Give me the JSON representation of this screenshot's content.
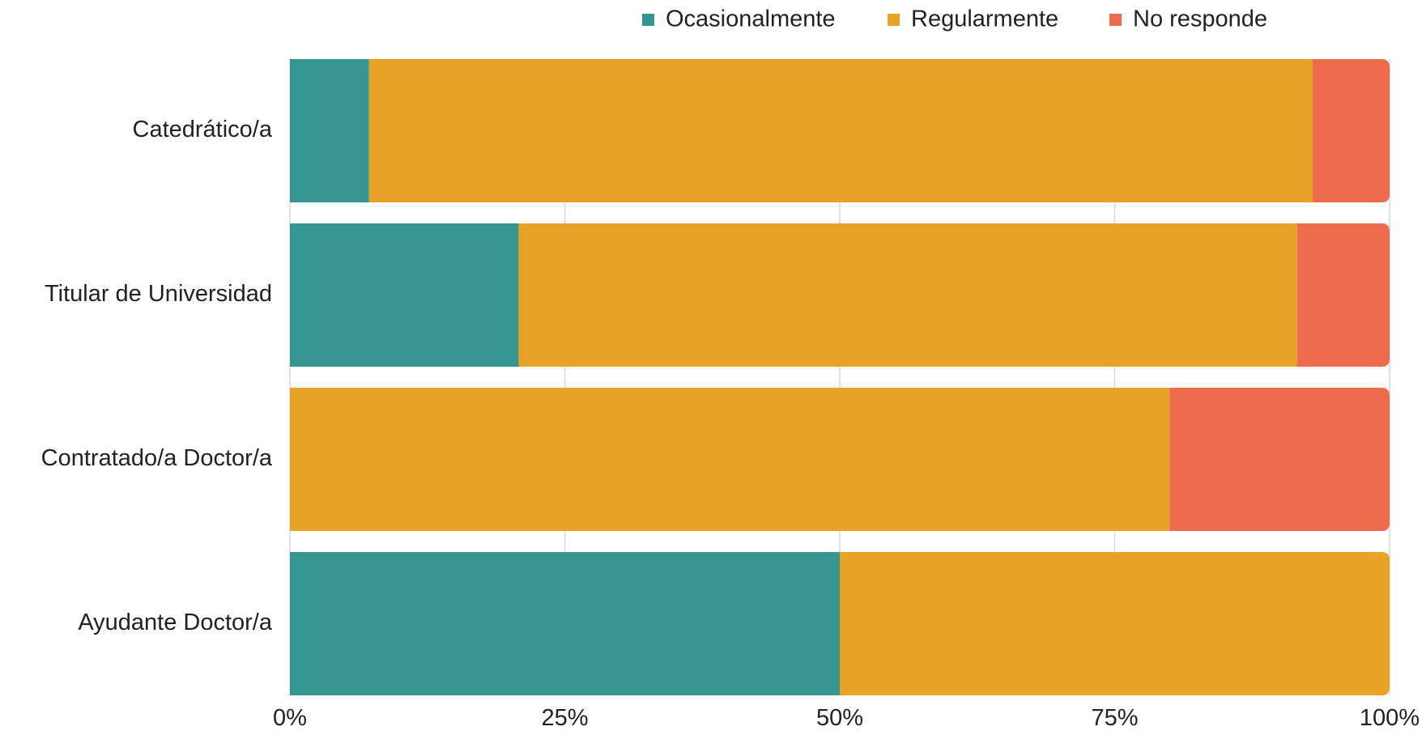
{
  "chart_data": {
    "type": "bar",
    "orientation": "horizontal",
    "stacked": true,
    "normalized": true,
    "categories": [
      "Catedrático/a",
      "Titular de Universidad",
      "Contratado/a Doctor/a",
      "Ayudante Doctor/a"
    ],
    "series": [
      {
        "name": "Ocasionalmente",
        "color": "#34968f",
        "values": [
          7.2,
          20.8,
          0,
          50
        ]
      },
      {
        "name": "Regularmente",
        "color": "#e8a326",
        "values": [
          85.8,
          70.8,
          80,
          50
        ]
      },
      {
        "name": "No responde",
        "color": "#ee6c4e",
        "values": [
          7,
          8.4,
          20,
          0
        ]
      }
    ],
    "xlim": [
      0,
      100
    ],
    "x_ticks": [
      "0%",
      "25%",
      "50%",
      "75%",
      "100%"
    ],
    "x_tick_values": [
      0,
      25,
      50,
      75,
      100
    ],
    "grid": true,
    "legend_position": "top-right",
    "title": "",
    "xlabel": "",
    "ylabel": ""
  }
}
